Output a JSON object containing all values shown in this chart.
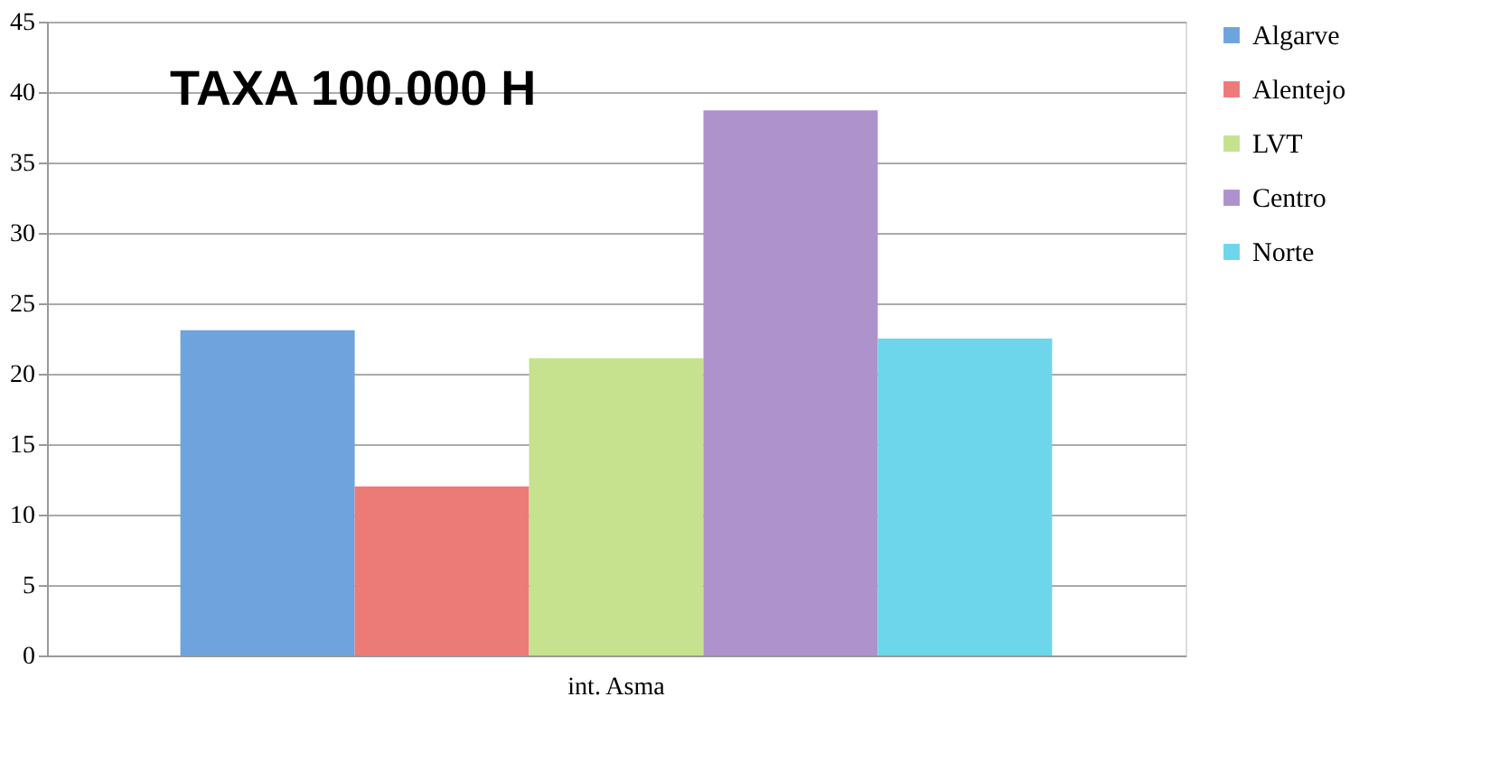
{
  "chart_data": {
    "type": "bar",
    "title": "TAXA 100.000 H",
    "categories": [
      "int. Asma"
    ],
    "series": [
      {
        "name": "Algarve",
        "color": "#6fa3de",
        "values": [
          23.1
        ]
      },
      {
        "name": "Alentejo",
        "color": "#ec7b78",
        "values": [
          12.0
        ]
      },
      {
        "name": "LVT",
        "color": "#c6e28e",
        "values": [
          21.1
        ]
      },
      {
        "name": "Centro",
        "color": "#ae92cc",
        "values": [
          38.7
        ]
      },
      {
        "name": "Norte",
        "color": "#6dd6ea",
        "values": [
          22.5
        ]
      }
    ],
    "ylim": [
      0,
      45
    ],
    "yticks": [
      0,
      5,
      10,
      15,
      20,
      25,
      30,
      35,
      40,
      45
    ],
    "grid": "y",
    "legend": "right"
  }
}
